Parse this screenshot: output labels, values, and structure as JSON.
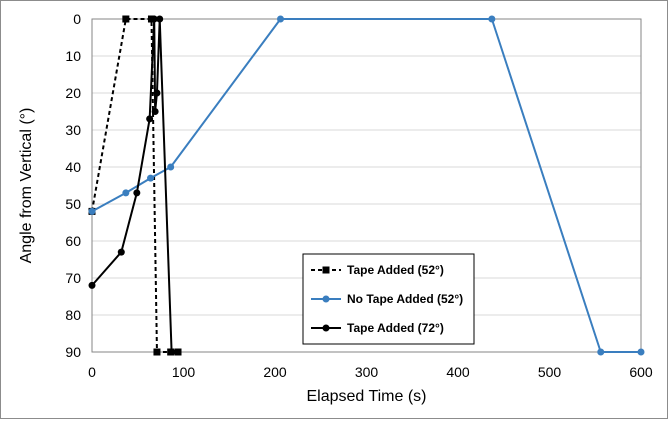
{
  "chart_data": {
    "type": "line",
    "title": "",
    "xlabel": "Elapsed Time (s)",
    "ylabel": "Angle from Vertical (°)",
    "xlim": [
      0,
      600
    ],
    "ylim": [
      0,
      90
    ],
    "y_reversed": true,
    "xticks": [
      0,
      100,
      200,
      300,
      400,
      500,
      600
    ],
    "yticks": [
      0,
      10,
      20,
      30,
      40,
      50,
      60,
      70,
      80,
      90
    ],
    "grid": "horizontal",
    "legend_position": "bottom-center",
    "series": [
      {
        "name": "Tape Added (52°)",
        "color": "#000000",
        "line_style": "dashed",
        "marker": "square",
        "points": [
          [
            0,
            52
          ],
          [
            37,
            0
          ],
          [
            65,
            0
          ],
          [
            71,
            90
          ],
          [
            86,
            90
          ],
          [
            94,
            90
          ]
        ]
      },
      {
        "name": "No Tape Added (52°)",
        "color": "#3a7ebf",
        "line_style": "solid",
        "marker": "circle",
        "points": [
          [
            0,
            52
          ],
          [
            37,
            47
          ],
          [
            64,
            43
          ],
          [
            86,
            40
          ],
          [
            206,
            0
          ],
          [
            437,
            0
          ],
          [
            556,
            90
          ],
          [
            600,
            90
          ]
        ]
      },
      {
        "name": "Tape Added (72°)",
        "color": "#000000",
        "line_style": "solid",
        "marker": "circle",
        "points": [
          [
            0,
            72
          ],
          [
            32,
            63
          ],
          [
            49,
            47
          ],
          [
            63,
            27
          ],
          [
            68,
            0
          ],
          [
            69,
            25
          ],
          [
            71,
            20
          ],
          [
            74,
            0
          ],
          [
            87,
            90
          ],
          [
            93,
            90
          ]
        ]
      }
    ]
  }
}
